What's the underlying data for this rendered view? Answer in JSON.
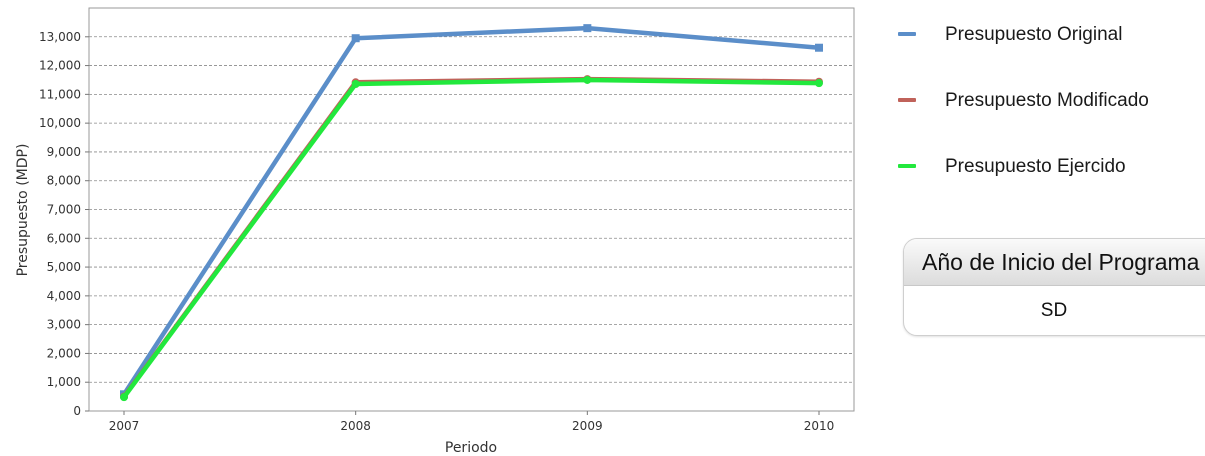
{
  "chart_data": {
    "type": "line",
    "title": "",
    "xlabel": "Periodo",
    "ylabel": "Presupuesto (MDP)",
    "categories": [
      "2007",
      "2008",
      "2009",
      "2010"
    ],
    "ylim": [
      0,
      14000
    ],
    "yticks": [
      "0",
      "1,000",
      "2,000",
      "3,000",
      "4,000",
      "5,000",
      "6,000",
      "7,000",
      "8,000",
      "9,000",
      "10,000",
      "11,000",
      "12,000",
      "13,000"
    ],
    "grid": true,
    "legend_position": "right",
    "series": [
      {
        "name": "Presupuesto Original",
        "color": "#5b8ec9",
        "values": [
          580,
          12950,
          13300,
          12620
        ]
      },
      {
        "name": "Presupuesto Modificado",
        "color": "#c0625a",
        "values": [
          500,
          11420,
          11530,
          11440
        ]
      },
      {
        "name": "Presupuesto Ejercido",
        "color": "#22e83d",
        "values": [
          480,
          11360,
          11500,
          11390
        ]
      }
    ]
  },
  "info_panel": {
    "title": "Año de Inicio del Programa",
    "value": "SD"
  }
}
